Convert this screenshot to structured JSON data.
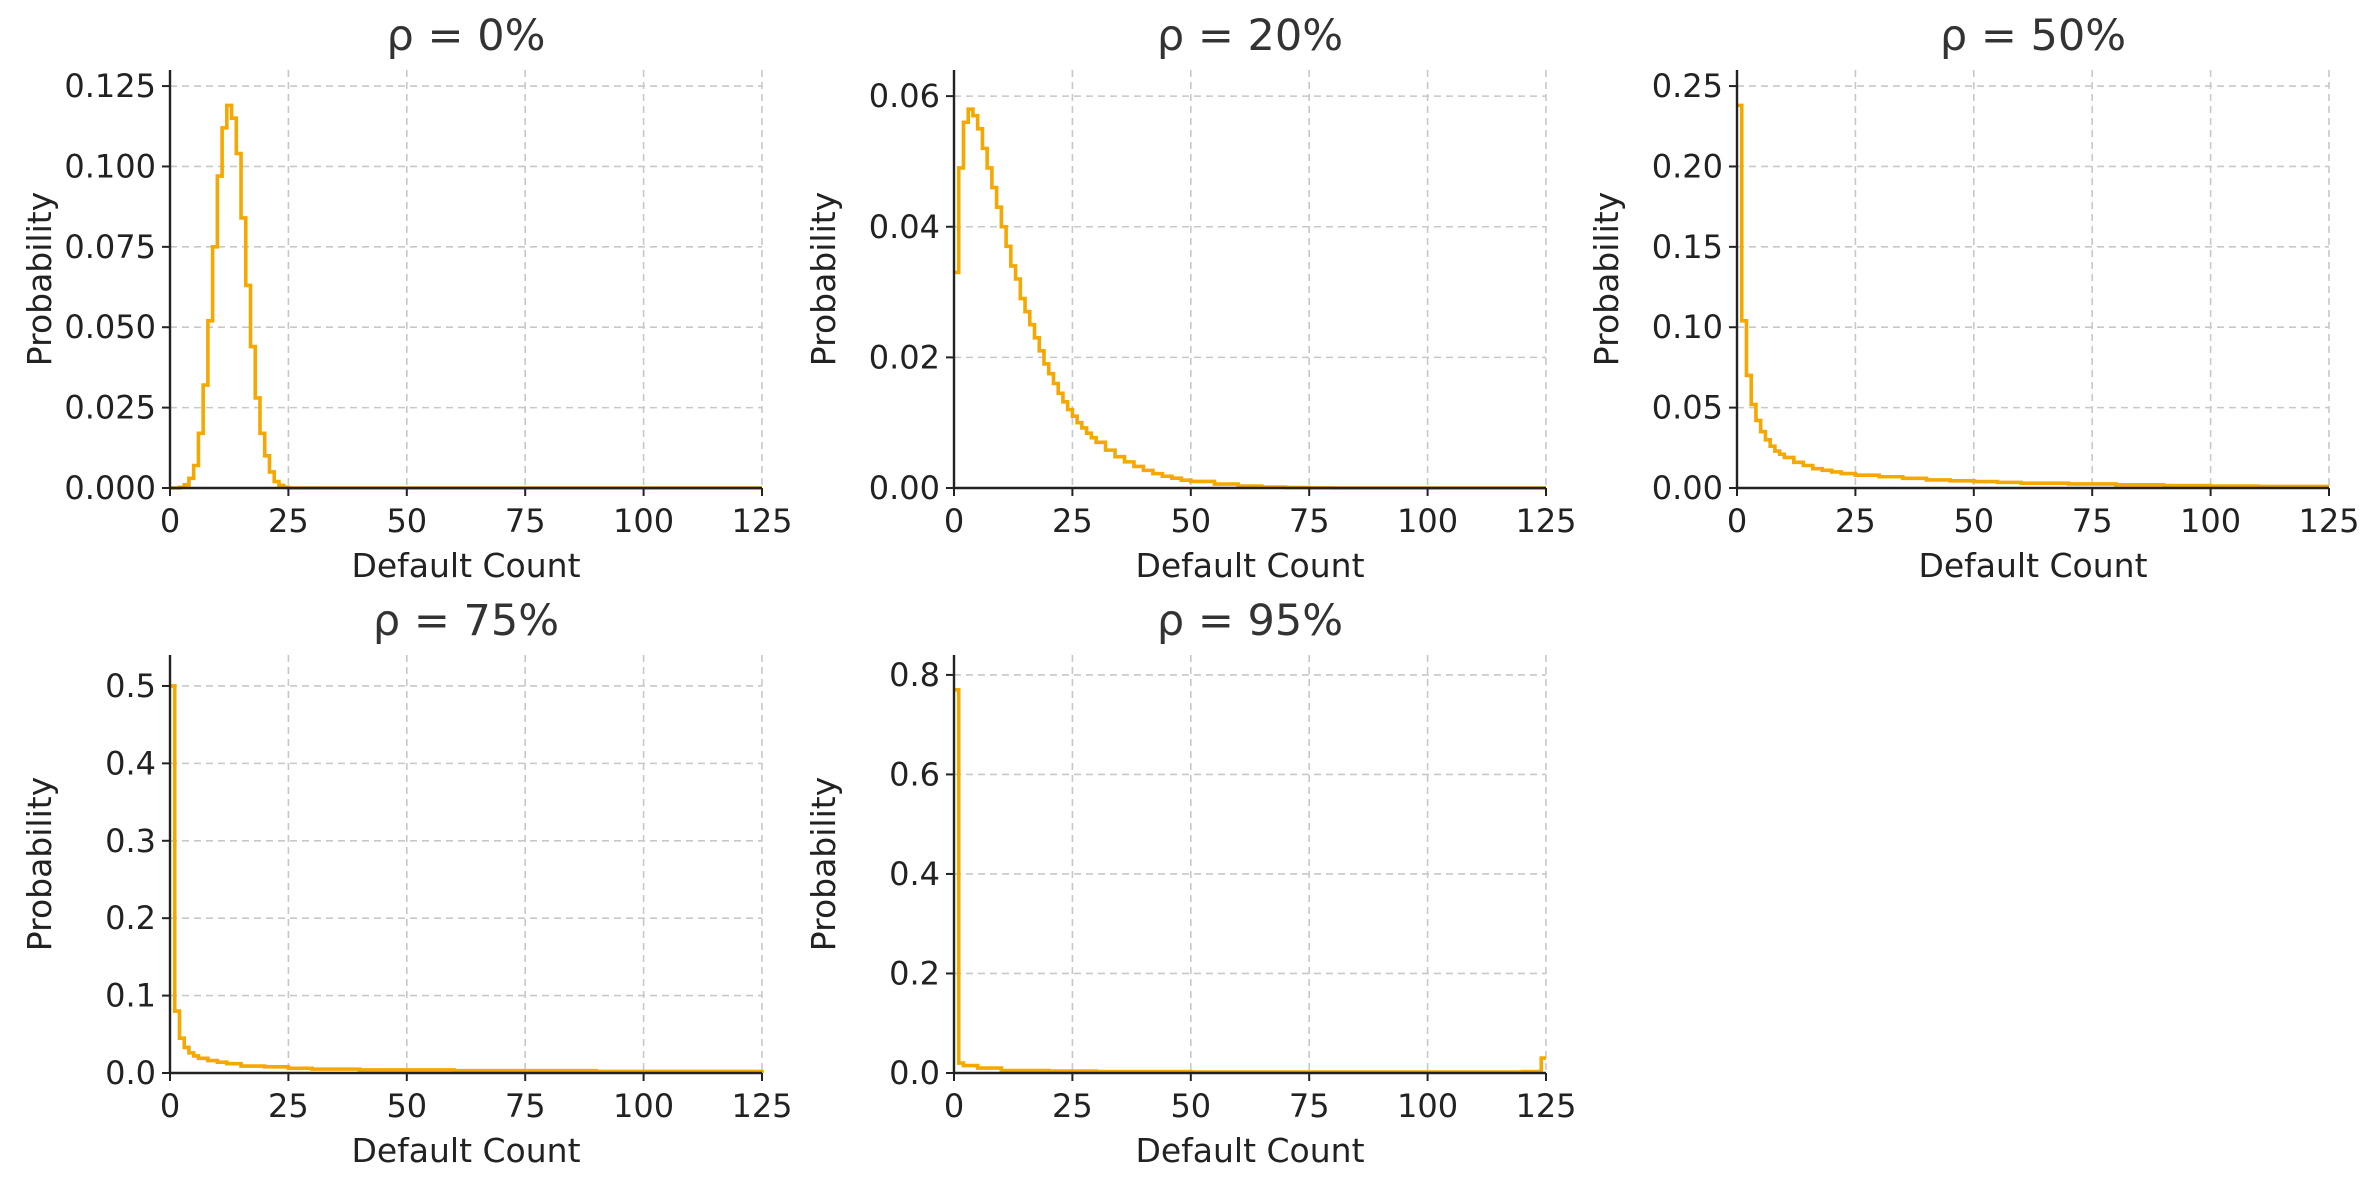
{
  "style": {
    "series_color": "#F5A800",
    "axis_color": "#222222",
    "grid_color": "#C8C8C8"
  },
  "chart_data": [
    {
      "type": "line",
      "step": true,
      "title": "ρ = 0%",
      "xlabel": "Default Count",
      "ylabel": "Probability",
      "xlim": [
        0,
        125
      ],
      "ylim": [
        0,
        0.13
      ],
      "xticks": [
        0,
        25,
        50,
        75,
        100,
        125
      ],
      "yticks": [
        0,
        0.025,
        0.05,
        0.075,
        0.1,
        0.125
      ],
      "ytick_labels": [
        "0.000",
        "0.025",
        "0.050",
        "0.075",
        "0.100",
        "0.125"
      ],
      "grid": true,
      "series": [
        {
          "x": [
            0,
            1,
            2,
            3,
            4,
            5,
            6,
            7,
            8,
            9,
            10,
            11,
            12,
            13,
            14,
            15,
            16,
            17,
            18,
            19,
            20,
            21,
            22,
            23,
            24,
            25,
            30,
            125
          ],
          "y": [
            0,
            0,
            0.0002,
            0.001,
            0.003,
            0.007,
            0.017,
            0.032,
            0.052,
            0.075,
            0.097,
            0.112,
            0.119,
            0.115,
            0.104,
            0.084,
            0.063,
            0.044,
            0.028,
            0.017,
            0.01,
            0.005,
            0.002,
            0.0008,
            0.0002,
            0,
            0,
            0
          ]
        }
      ]
    },
    {
      "type": "line",
      "step": true,
      "title": "ρ = 20%",
      "xlabel": "Default Count",
      "ylabel": "Probability",
      "xlim": [
        0,
        125
      ],
      "ylim": [
        0,
        0.064
      ],
      "xticks": [
        0,
        25,
        50,
        75,
        100,
        125
      ],
      "yticks": [
        0,
        0.02,
        0.04,
        0.06
      ],
      "ytick_labels": [
        "0.00",
        "0.02",
        "0.04",
        "0.06"
      ],
      "grid": true,
      "series": [
        {
          "x": [
            0,
            1,
            2,
            3,
            4,
            5,
            6,
            7,
            8,
            9,
            10,
            11,
            12,
            13,
            14,
            15,
            16,
            17,
            18,
            19,
            20,
            21,
            22,
            23,
            24,
            25,
            26,
            27,
            28,
            29,
            30,
            32,
            34,
            36,
            38,
            40,
            42,
            44,
            46,
            48,
            50,
            55,
            60,
            65,
            70,
            75,
            80,
            125
          ],
          "y": [
            0.033,
            0.049,
            0.056,
            0.058,
            0.057,
            0.055,
            0.052,
            0.049,
            0.046,
            0.043,
            0.04,
            0.037,
            0.034,
            0.032,
            0.029,
            0.027,
            0.025,
            0.023,
            0.021,
            0.019,
            0.0175,
            0.016,
            0.0145,
            0.0132,
            0.012,
            0.011,
            0.01,
            0.0092,
            0.0084,
            0.0077,
            0.007,
            0.0058,
            0.0048,
            0.004,
            0.0033,
            0.0027,
            0.0022,
            0.0018,
            0.0015,
            0.0012,
            0.001,
            0.0006,
            0.0003,
            0.00015,
            6e-05,
            2e-05,
            0,
            0
          ]
        }
      ]
    },
    {
      "type": "line",
      "step": true,
      "title": "ρ = 50%",
      "xlabel": "Default Count",
      "ylabel": "Probability",
      "xlim": [
        0,
        125
      ],
      "ylim": [
        0,
        0.26
      ],
      "xticks": [
        0,
        25,
        50,
        75,
        100,
        125
      ],
      "yticks": [
        0,
        0.05,
        0.1,
        0.15,
        0.2,
        0.25
      ],
      "ytick_labels": [
        "0.00",
        "0.05",
        "0.10",
        "0.15",
        "0.20",
        "0.25"
      ],
      "grid": true,
      "series": [
        {
          "x": [
            0,
            1,
            2,
            3,
            4,
            5,
            6,
            7,
            8,
            9,
            10,
            12,
            14,
            16,
            18,
            20,
            22,
            25,
            30,
            35,
            40,
            45,
            50,
            55,
            60,
            70,
            80,
            90,
            100,
            110,
            125
          ],
          "y": [
            0.238,
            0.104,
            0.07,
            0.052,
            0.042,
            0.035,
            0.03,
            0.026,
            0.023,
            0.021,
            0.019,
            0.016,
            0.014,
            0.012,
            0.011,
            0.01,
            0.009,
            0.008,
            0.007,
            0.006,
            0.005,
            0.0045,
            0.004,
            0.0035,
            0.003,
            0.0025,
            0.002,
            0.0015,
            0.0012,
            0.001,
            0.001
          ]
        }
      ]
    },
    {
      "type": "line",
      "step": true,
      "title": "ρ = 75%",
      "xlabel": "Default Count",
      "ylabel": "Probability",
      "xlim": [
        0,
        125
      ],
      "ylim": [
        0,
        0.54
      ],
      "xticks": [
        0,
        25,
        50,
        75,
        100,
        125
      ],
      "yticks": [
        0,
        0.1,
        0.2,
        0.3,
        0.4,
        0.5
      ],
      "ytick_labels": [
        "0.0",
        "0.1",
        "0.2",
        "0.3",
        "0.4",
        "0.5"
      ],
      "grid": true,
      "series": [
        {
          "x": [
            0,
            1,
            2,
            3,
            4,
            5,
            6,
            8,
            10,
            12,
            15,
            20,
            25,
            30,
            35,
            40,
            50,
            60,
            70,
            80,
            90,
            100,
            110,
            125
          ],
          "y": [
            0.5,
            0.08,
            0.045,
            0.033,
            0.026,
            0.022,
            0.019,
            0.016,
            0.014,
            0.012,
            0.009,
            0.008,
            0.006,
            0.005,
            0.005,
            0.004,
            0.004,
            0.003,
            0.003,
            0.003,
            0.002,
            0.002,
            0.002,
            0.004
          ]
        }
      ]
    },
    {
      "type": "line",
      "step": true,
      "title": "ρ = 95%",
      "xlabel": "Default Count",
      "ylabel": "Probability",
      "xlim": [
        0,
        125
      ],
      "ylim": [
        0,
        0.84
      ],
      "xticks": [
        0,
        25,
        50,
        75,
        100,
        125
      ],
      "yticks": [
        0,
        0.2,
        0.4,
        0.6,
        0.8
      ],
      "ytick_labels": [
        "0.0",
        "0.2",
        "0.4",
        "0.6",
        "0.8"
      ],
      "grid": true,
      "series": [
        {
          "x": [
            0,
            1,
            2,
            5,
            10,
            20,
            30,
            50,
            75,
            100,
            120,
            124,
            125
          ],
          "y": [
            0.77,
            0.02,
            0.015,
            0.01,
            0.005,
            0.004,
            0.003,
            0.002,
            0.002,
            0.002,
            0.003,
            0.03,
            0.03
          ]
        }
      ]
    }
  ]
}
